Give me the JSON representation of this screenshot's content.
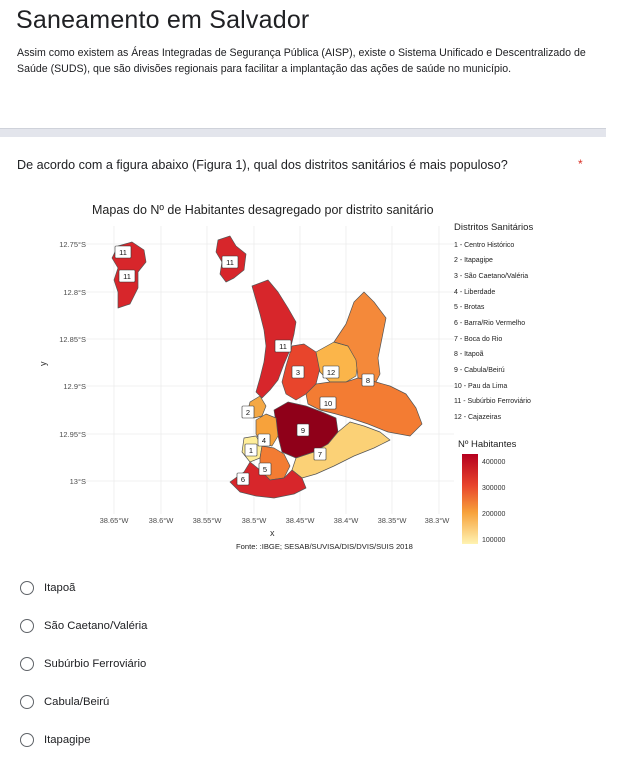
{
  "header": {
    "title": "Saneamento em Salvador",
    "description": "Assim como existem as Áreas Integradas de Segurança Pública (AISP), existe o Sistema Unificado e Descentralizado de Saúde (SUDS), que são divisões regionais para facilitar a implantação das ações de saúde no município."
  },
  "question": {
    "text": "De acordo com a figura abaixo (Figura 1), qual dos distritos sanitários é mais populoso?",
    "required_mark": "*"
  },
  "figure": {
    "title": "Mapas do Nº de Habitantes desagregado por distrito sanitário",
    "y_label": "y",
    "x_label": "x",
    "y_ticks": [
      "12.75°S",
      "12.8°S",
      "12.85°S",
      "12.9°S",
      "12.95°S",
      "13°S"
    ],
    "x_ticks": [
      "38.65°W",
      "38.6°W",
      "38.55°W",
      "38.5°W",
      "38.45°W",
      "38.4°W",
      "38.35°W",
      "38.3°W"
    ],
    "source": "Fonte: :IBGE; SESAB/SUVISA/DIS/DVIS/SUIS  2018",
    "districts_title": "Distritos Sanitários",
    "districts": [
      "1 - Centro Histórico",
      "2 - Itapagipe",
      "3 - São Caetano/Valéria",
      "4 - Liberdade",
      "5 - Brotas",
      "6 - Barra/Rio Vermelho",
      "7 - Boca do Rio",
      "8 - Itapoã",
      "9 - Cabula/Beirú",
      "10 - Pau da Lima",
      "11 - Subúrbio Ferroviário",
      "12 - Cajazeiras"
    ],
    "legend_title": "Nº Habitantes",
    "legend_values": [
      "400000",
      "300000",
      "200000",
      "100000"
    ],
    "map_labels": [
      "11",
      "11",
      "11",
      "11",
      "3",
      "12",
      "8",
      "10",
      "2",
      "9",
      "4",
      "1",
      "7",
      "5",
      "6"
    ],
    "colors": {
      "low": "#ffee9a",
      "mid": "#f7a23b",
      "high": "#d7262b",
      "max": "#8f0019"
    }
  },
  "options": [
    "Itapoã",
    "São Caetano/Valéria",
    "Subúrbio Ferroviário",
    "Cabula/Beirú",
    "Itapagipe"
  ]
}
